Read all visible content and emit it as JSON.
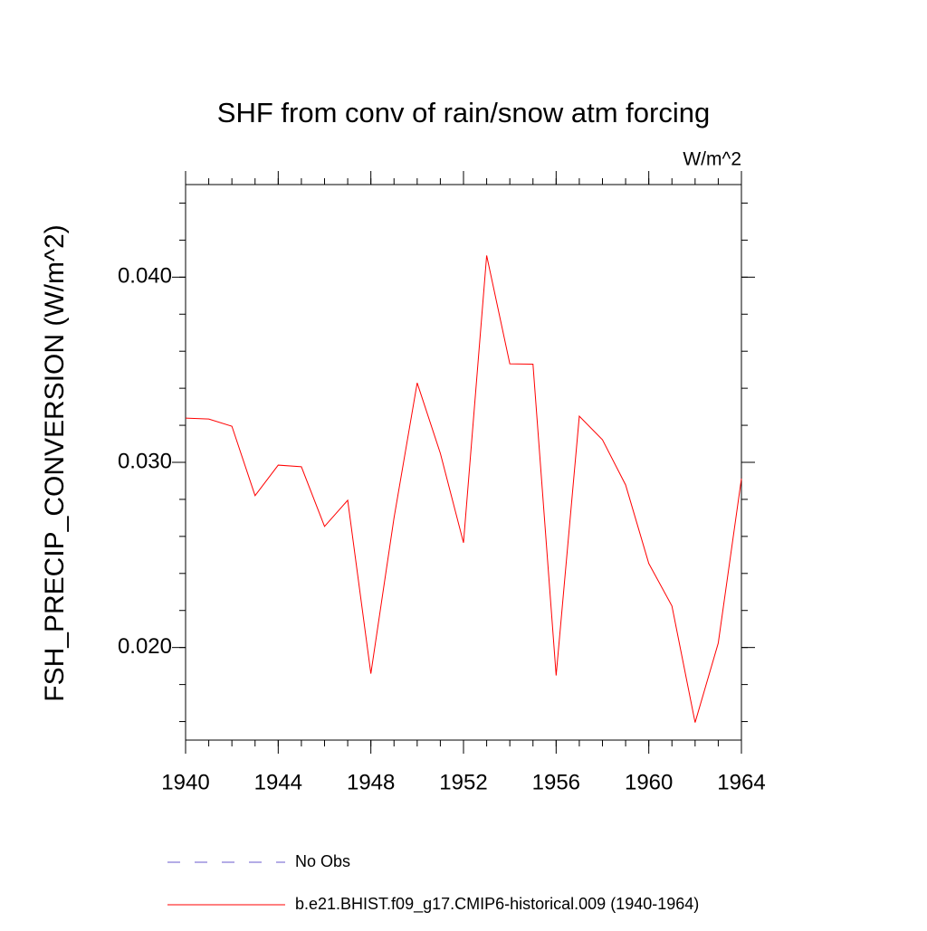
{
  "chart_data": {
    "type": "line",
    "title": "SHF from conv of rain/snow atm forcing",
    "subtitle": "W/m^2",
    "y_label": "FSH_PRECIP_CONVERSION  (W/m^2)",
    "x": [
      1940,
      1941,
      1942,
      1943,
      1944,
      1945,
      1946,
      1947,
      1948,
      1949,
      1950,
      1951,
      1952,
      1953,
      1954,
      1955,
      1956,
      1957,
      1958,
      1959,
      1960,
      1961,
      1962,
      1963,
      1964
    ],
    "series": [
      {
        "name": "b.e21.BHIST.f09_g17.CMIP6-historical.009 (1940-1964)",
        "color": "#ff0000",
        "values": [
          0.03239,
          0.03234,
          0.03195,
          0.0282,
          0.02985,
          0.02976,
          0.02654,
          0.02795,
          0.01859,
          0.027,
          0.03429,
          0.03049,
          0.02566,
          0.04117,
          0.03532,
          0.0353,
          0.01849,
          0.03249,
          0.03122,
          0.02878,
          0.02454,
          0.02224,
          0.01595,
          0.02024,
          0.02912
        ]
      }
    ],
    "legend_entries": [
      {
        "name": "No Obs",
        "color": "#6a5acd",
        "style": "dashed"
      }
    ],
    "xlim": [
      1940,
      1964
    ],
    "xticks": [
      1940,
      1944,
      1948,
      1952,
      1956,
      1960,
      1964
    ],
    "ylim": [
      0.015,
      0.045
    ],
    "yticks": [
      {
        "value": 0.02,
        "label": "0.020"
      },
      {
        "value": 0.03,
        "label": "0.030"
      },
      {
        "value": 0.04,
        "label": "0.040"
      }
    ]
  }
}
